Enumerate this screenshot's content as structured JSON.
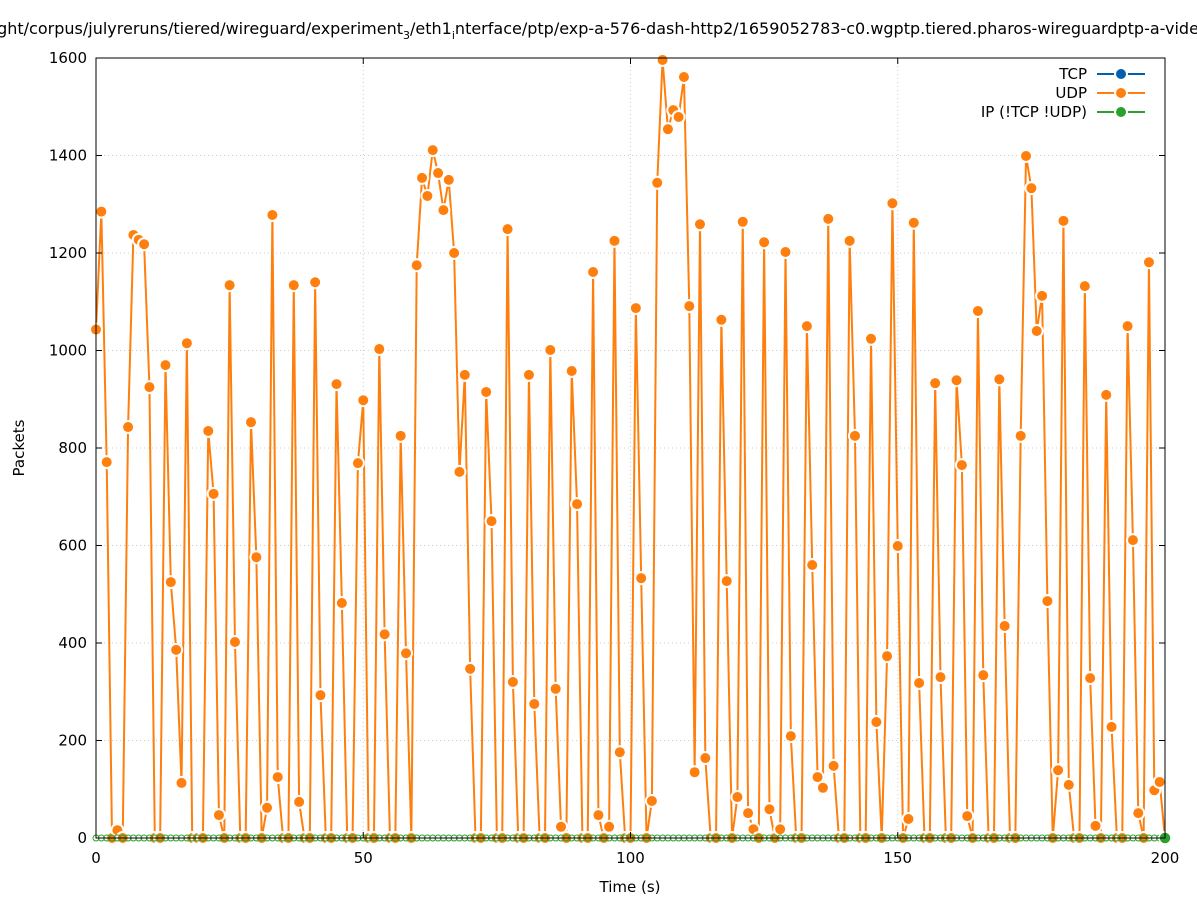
{
  "chart_data": {
    "type": "line",
    "title": "ght/corpus/julyreruns/tiered/wireguard/experiment_3/eth1_interface/ptp/exp-a-576-dash-http2/1659052783-c0.wgptp.tiered.pharos-wireguardptp-a-vide",
    "xlabel": "Time (s)",
    "ylabel": "Packets",
    "xlim": [
      0,
      200
    ],
    "ylim": [
      0,
      1600
    ],
    "xticks": [
      0,
      50,
      100,
      150,
      200
    ],
    "yticks": [
      0,
      200,
      400,
      600,
      800,
      1000,
      1200,
      1400,
      1600
    ],
    "grid": true,
    "legend_position": "top-right",
    "series": [
      {
        "name": "TCP",
        "color": "#0060ad",
        "values": []
      },
      {
        "name": "UDP",
        "color": "#ff7f0e",
        "x_start": 0,
        "x_step": 1,
        "values": [
          1043,
          1285,
          771,
          0,
          16,
          0,
          843,
          1237,
          1227,
          1218,
          925,
          0,
          0,
          970,
          525,
          386,
          113,
          1015,
          0,
          0,
          0,
          835,
          706,
          47,
          0,
          1134,
          402,
          0,
          0,
          853,
          576,
          0,
          62,
          1278,
          125,
          0,
          0,
          1134,
          74,
          0,
          0,
          1140,
          293,
          0,
          0,
          931,
          482,
          0,
          0,
          769,
          898,
          0,
          0,
          1003,
          418,
          0,
          0,
          825,
          379,
          0,
          1175,
          1354,
          1317,
          1411,
          1364,
          1288,
          1350,
          1200,
          751,
          950,
          347,
          0,
          0,
          915,
          650,
          0,
          0,
          1249,
          320,
          0,
          0,
          950,
          275,
          0,
          0,
          1001,
          306,
          23,
          0,
          958,
          685,
          0,
          0,
          1161,
          47,
          0,
          23,
          1225,
          176,
          0,
          0,
          1087,
          533,
          0,
          76,
          1344,
          1596,
          1454,
          1493,
          1479,
          1561,
          1091,
          135,
          1259,
          164,
          0,
          0,
          1063,
          527,
          0,
          84,
          1264,
          51,
          18,
          0,
          1222,
          59,
          0,
          18,
          1202,
          209,
          0,
          0,
          1050,
          560,
          125,
          103,
          1270,
          148,
          0,
          0,
          1225,
          825,
          0,
          0,
          1024,
          238,
          0,
          373,
          1302,
          599,
          0,
          39,
          1262,
          318,
          0,
          0,
          933,
          330,
          0,
          0,
          939,
          765,
          45,
          0,
          1081,
          334,
          0,
          0,
          941,
          435,
          0,
          0,
          825,
          1399,
          1333,
          1040,
          1112,
          486,
          0,
          139,
          1266,
          109,
          0,
          0,
          1132,
          328,
          25,
          0,
          909,
          228,
          0,
          0,
          1050,
          611,
          51,
          0,
          1181,
          98,
          115,
          0
        ]
      },
      {
        "name": "IP (!TCP  !UDP)",
        "color": "#2ca02c",
        "x_start": 0,
        "x_step": 1,
        "constant_value": 0,
        "count": 201
      }
    ]
  }
}
